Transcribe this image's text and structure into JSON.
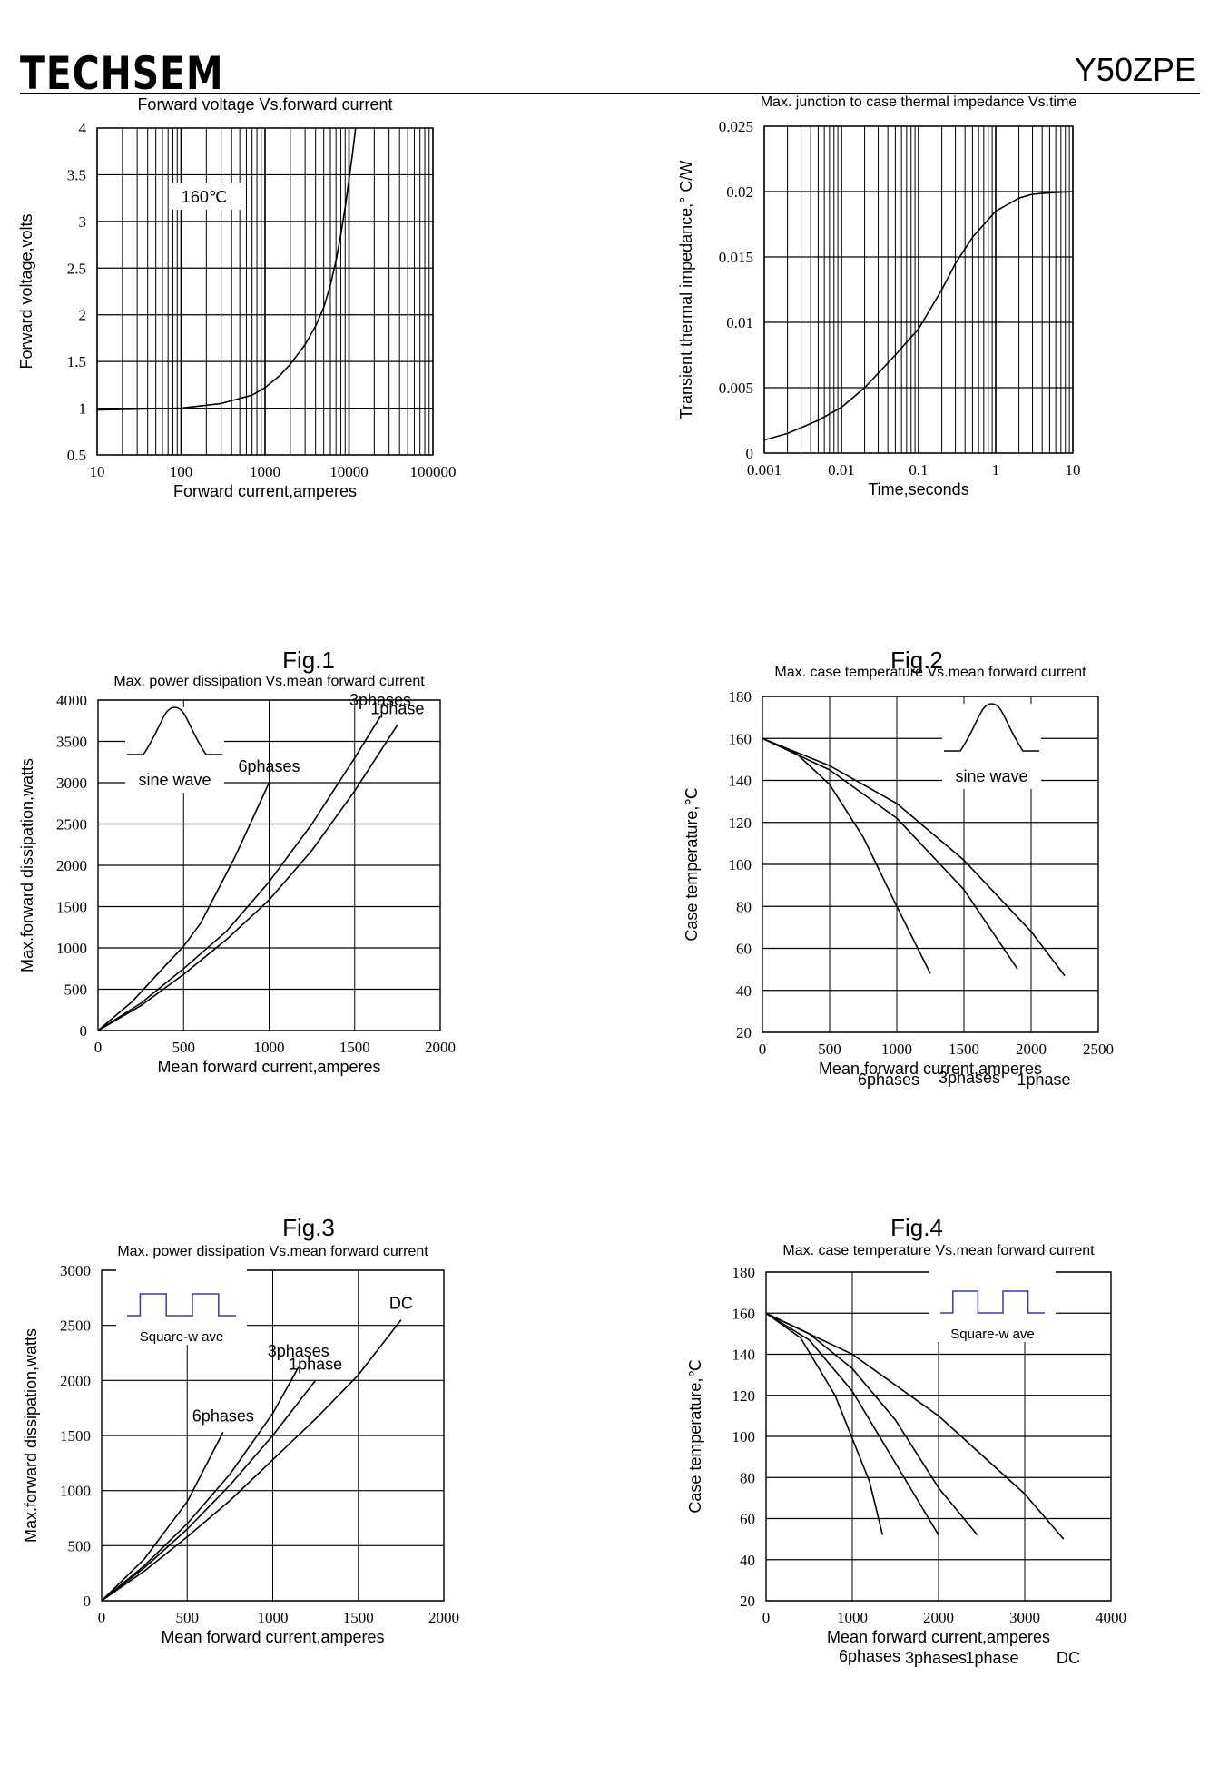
{
  "header": {
    "brand": "TECHSEM",
    "model": "Y50ZPE"
  },
  "figure_labels": [
    "Fig.1",
    "Fig.2",
    "Fig.3",
    "Fig.4"
  ],
  "chart_data": [
    {
      "id": "fig1",
      "type": "line",
      "title": "Forward voltage Vs.forward current",
      "xlabel": "Forward current,amperes",
      "ylabel": "Forward voltage,volts",
      "xscale": "log",
      "xlim": [
        10,
        100000
      ],
      "ylim": [
        0.5,
        4
      ],
      "xticks": [
        10,
        100,
        1000,
        10000,
        100000
      ],
      "yticks": [
        0.5,
        1,
        1.5,
        2,
        2.5,
        3,
        3.5,
        4
      ],
      "grid": true,
      "annotations": [
        "160℃"
      ],
      "series": [
        {
          "x": [
            10,
            30,
            100,
            300,
            700,
            1000,
            1500,
            2000,
            3000,
            4000,
            5000,
            6000,
            7000,
            8000,
            9000,
            10000,
            11000,
            12000
          ],
          "y": [
            0.98,
            0.99,
            1.0,
            1.05,
            1.14,
            1.22,
            1.35,
            1.47,
            1.68,
            1.88,
            2.08,
            2.32,
            2.58,
            2.86,
            3.15,
            3.45,
            3.72,
            4.0
          ]
        }
      ]
    },
    {
      "id": "fig2",
      "type": "line",
      "title": "Max. junction to case thermal impedance Vs.time",
      "xlabel": "Time,seconds",
      "ylabel": "Transient thermal impedance,° C/W",
      "xscale": "log",
      "xlim": [
        0.001,
        10
      ],
      "ylim": [
        0,
        0.025
      ],
      "xticks": [
        0.001,
        0.01,
        0.1,
        1,
        10
      ],
      "yticks": [
        0,
        0.005,
        0.01,
        0.015,
        0.02,
        0.025
      ],
      "grid": true,
      "series": [
        {
          "x": [
            0.001,
            0.002,
            0.005,
            0.01,
            0.02,
            0.05,
            0.1,
            0.2,
            0.3,
            0.5,
            1,
            2,
            3,
            5,
            10
          ],
          "y": [
            0.001,
            0.0015,
            0.0025,
            0.0035,
            0.005,
            0.0075,
            0.0095,
            0.0125,
            0.0145,
            0.0165,
            0.0185,
            0.0195,
            0.0198,
            0.0199,
            0.02
          ]
        }
      ]
    },
    {
      "id": "fig3",
      "type": "line",
      "title": "Max. power dissipation Vs.mean forward current",
      "xlabel": "Mean forward current,amperes",
      "ylabel": "Max.forward dissipation,watts",
      "xlim": [
        0,
        2000
      ],
      "ylim": [
        0,
        4000
      ],
      "xticks": [
        0,
        500,
        1000,
        1500,
        2000
      ],
      "yticks": [
        0,
        500,
        1000,
        1500,
        2000,
        2500,
        3000,
        3500,
        4000
      ],
      "grid": true,
      "waveform": "sine",
      "waveform_label": "sine wave",
      "series": [
        {
          "name": "6phases",
          "x": [
            0,
            200,
            400,
            500,
            600,
            800,
            1000
          ],
          "y": [
            0,
            350,
            800,
            1020,
            1300,
            2100,
            3000
          ]
        },
        {
          "name": "3phases",
          "x": [
            0,
            250,
            500,
            750,
            1000,
            1250,
            1500,
            1650
          ],
          "y": [
            0,
            330,
            750,
            1200,
            1800,
            2500,
            3300,
            3800
          ]
        },
        {
          "name": "1phase",
          "x": [
            0,
            250,
            500,
            750,
            1000,
            1250,
            1500,
            1750
          ],
          "y": [
            0,
            300,
            680,
            1100,
            1580,
            2180,
            2900,
            3700
          ]
        }
      ]
    },
    {
      "id": "fig4",
      "type": "line",
      "title": "Max. case temperature Vs.mean forward current",
      "xlabel": "Mean forward current,amperes",
      "ylabel": "Case temperature,℃",
      "xlim": [
        0,
        2500
      ],
      "ylim": [
        20,
        180
      ],
      "xticks": [
        0,
        500,
        1000,
        1500,
        2000,
        2500
      ],
      "yticks": [
        20,
        40,
        60,
        80,
        100,
        120,
        140,
        160,
        180
      ],
      "grid": true,
      "waveform": "sine",
      "waveform_label": "sine wave",
      "series": [
        {
          "name": "6phases",
          "x": [
            0,
            250,
            500,
            750,
            1000,
            1250
          ],
          "y": [
            160,
            153,
            138,
            113,
            80,
            48
          ]
        },
        {
          "name": "3phases",
          "x": [
            0,
            500,
            1000,
            1500,
            1900
          ],
          "y": [
            160,
            145,
            122,
            88,
            50
          ]
        },
        {
          "name": "1phase",
          "x": [
            0,
            500,
            1000,
            1500,
            2000,
            2250
          ],
          "y": [
            160,
            147,
            129,
            102,
            68,
            47
          ]
        }
      ]
    },
    {
      "id": "fig5",
      "type": "line",
      "title": "Max. power dissipation Vs.mean forward current",
      "xlabel": "Mean forward current,amperes",
      "ylabel": "Max.forward dissipation,watts",
      "xlim": [
        0,
        2000
      ],
      "ylim": [
        0,
        3000
      ],
      "xticks": [
        0,
        500,
        1000,
        1500,
        2000
      ],
      "yticks": [
        0,
        500,
        1000,
        1500,
        2000,
        2500,
        3000
      ],
      "grid": true,
      "waveform": "square",
      "waveform_label": "Square-w ave",
      "series": [
        {
          "name": "6phases",
          "x": [
            0,
            250,
            500,
            710
          ],
          "y": [
            0,
            380,
            900,
            1530
          ]
        },
        {
          "name": "3phases",
          "x": [
            0,
            250,
            500,
            750,
            1000,
            1150
          ],
          "y": [
            0,
            320,
            700,
            1150,
            1700,
            2120
          ]
        },
        {
          "name": "1phase",
          "x": [
            0,
            250,
            500,
            750,
            1000,
            1250
          ],
          "y": [
            0,
            300,
            650,
            1050,
            1500,
            2000
          ]
        },
        {
          "name": "DC",
          "x": [
            0,
            250,
            500,
            750,
            1000,
            1250,
            1500,
            1750
          ],
          "y": [
            0,
            270,
            580,
            910,
            1280,
            1650,
            2050,
            2550
          ]
        }
      ]
    },
    {
      "id": "fig6",
      "type": "line",
      "title": "Max. case temperature Vs.mean forward current",
      "xlabel": "Mean forward current,amperes",
      "ylabel": "Case temperature,℃",
      "xlim": [
        0,
        4000
      ],
      "ylim": [
        20,
        180
      ],
      "xticks": [
        0,
        1000,
        2000,
        3000,
        4000
      ],
      "yticks": [
        20,
        40,
        60,
        80,
        100,
        120,
        140,
        160,
        180
      ],
      "grid": true,
      "waveform": "square",
      "waveform_label": "Square-w ave",
      "series": [
        {
          "name": "6phases",
          "x": [
            0,
            400,
            800,
            1200,
            1350
          ],
          "y": [
            160,
            148,
            120,
            78,
            52
          ]
        },
        {
          "name": "3phases",
          "x": [
            0,
            500,
            1000,
            1500,
            2000
          ],
          "y": [
            160,
            147,
            122,
            87,
            52
          ]
        },
        {
          "name": "1phase",
          "x": [
            0,
            500,
            1000,
            1500,
            2000,
            2450
          ],
          "y": [
            160,
            150,
            133,
            108,
            75,
            52
          ]
        },
        {
          "name": "DC",
          "x": [
            0,
            1000,
            2000,
            3000,
            3450
          ],
          "y": [
            160,
            140,
            110,
            72,
            50
          ]
        }
      ]
    }
  ]
}
